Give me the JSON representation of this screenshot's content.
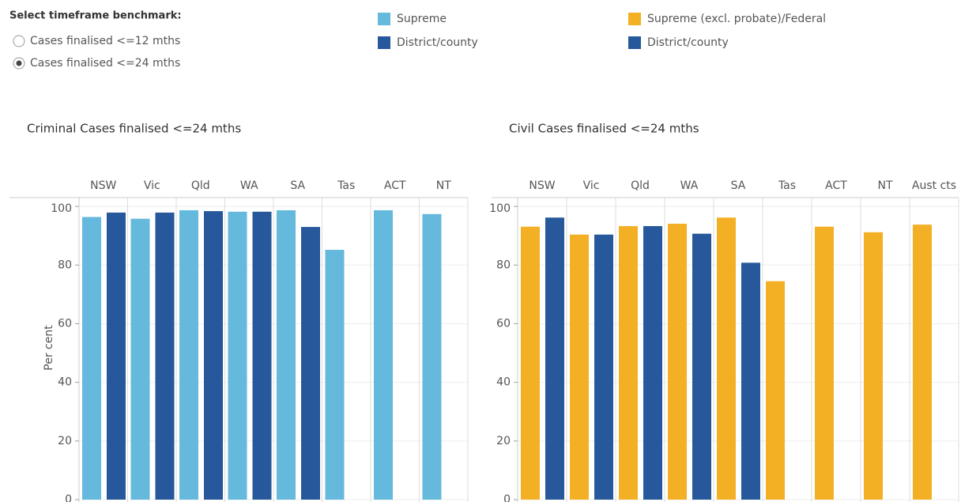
{
  "controls": {
    "label": "Select timeframe benchmark:",
    "options": [
      "Cases finalised <=12 mths",
      "Cases finalised <=24 mths"
    ],
    "selected": 1
  },
  "chart_data": [
    {
      "type": "bar",
      "title": "Criminal Cases finalised <=24 mths",
      "y_label": "Per cent",
      "categories": [
        "NSW",
        "Vic",
        "Qld",
        "WA",
        "SA",
        "Tas",
        "ACT",
        "NT"
      ],
      "series": [
        {
          "name": "Supreme",
          "color": "#65b9dc",
          "values": [
            96.4,
            95.8,
            98.7,
            98.2,
            98.7,
            85.2,
            98.7,
            97.4
          ]
        },
        {
          "name": "District/county",
          "color": "#27589b",
          "values": [
            97.9,
            97.9,
            98.4,
            98.2,
            93.0,
            null,
            null,
            null
          ]
        }
      ],
      "ylim": [
        0,
        103
      ],
      "yticks": [
        0,
        20,
        40,
        60,
        80,
        100
      ],
      "grid": true
    },
    {
      "type": "bar",
      "title": "Civil Cases finalised <=24 mths",
      "categories": [
        "NSW",
        "Vic",
        "Qld",
        "WA",
        "SA",
        "Tas",
        "ACT",
        "NT",
        "Aust cts"
      ],
      "series": [
        {
          "name": "Supreme (excl. probate)/Federal",
          "color": "#f4b025",
          "values": [
            93.1,
            90.4,
            93.3,
            94.1,
            96.2,
            74.5,
            93.1,
            91.2,
            93.8
          ]
        },
        {
          "name": "District/county",
          "color": "#27589b",
          "values": [
            96.2,
            90.4,
            93.3,
            90.7,
            80.8,
            null,
            null,
            null,
            null
          ]
        }
      ],
      "ylim": [
        0,
        103
      ],
      "yticks": [
        0,
        20,
        40,
        60,
        80,
        100
      ],
      "grid": true
    }
  ]
}
